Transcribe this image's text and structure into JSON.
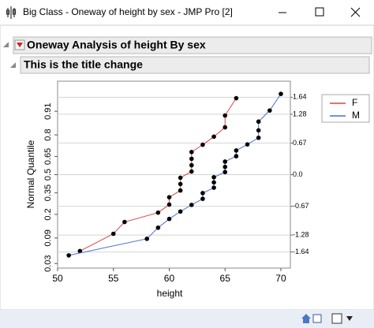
{
  "window": {
    "title": "Big Class - Oneway of height by sex - JMP Pro [2]"
  },
  "outline": {
    "title": "Oneway Analysis of height By sex",
    "subtitle": "This is the title change"
  },
  "chart_data": {
    "type": "line",
    "xlabel": "height",
    "ylabel": "Normal Quantile",
    "series": [
      {
        "name": "F",
        "color": "#d9454a",
        "axis": "y2",
        "x": [
          52,
          55,
          56,
          59,
          60,
          60,
          61,
          61,
          61,
          62,
          62,
          62,
          62,
          63,
          64,
          65,
          65,
          66
        ],
        "values": [
          -1.62,
          -1.253,
          -1.003,
          -0.805,
          -0.634,
          -0.479,
          -0.336,
          -0.199,
          -0.066,
          0.066,
          0.199,
          0.336,
          0.479,
          0.634,
          0.805,
          1.003,
          1.253,
          1.62
        ]
      },
      {
        "name": "M",
        "color": "#4a6fd0",
        "axis": "y2",
        "x": [
          51,
          58,
          59,
          60,
          61,
          62,
          63,
          63,
          64,
          64,
          64,
          65,
          65,
          65,
          66,
          66,
          67,
          68,
          68,
          68,
          69,
          70
        ],
        "values": [
          -1.711,
          -1.359,
          -1.124,
          -0.939,
          -0.781,
          -0.641,
          -0.512,
          -0.391,
          -0.276,
          -0.164,
          -0.055,
          0.055,
          0.164,
          0.276,
          0.391,
          0.512,
          0.641,
          0.781,
          0.939,
          1.124,
          1.359,
          1.711
        ]
      }
    ],
    "xlim": [
      50,
      70.85
    ],
    "xticks": [
      50,
      55,
      60,
      65,
      70
    ],
    "yscale": "normal-quantile",
    "ylim": [
      0.024,
      0.976
    ],
    "yticks": [
      0.03,
      0.09,
      0.2,
      0.35,
      0.5,
      0.65,
      0.8,
      0.91
    ],
    "y2lim": [
      -1.98,
      1.98
    ],
    "y2ticks": [
      1.64,
      1.28,
      0.67,
      {
        "value": 0,
        "label": "0.0"
      },
      -0.67,
      -1.28,
      -1.64
    ],
    "grid": true,
    "legend": "right"
  }
}
